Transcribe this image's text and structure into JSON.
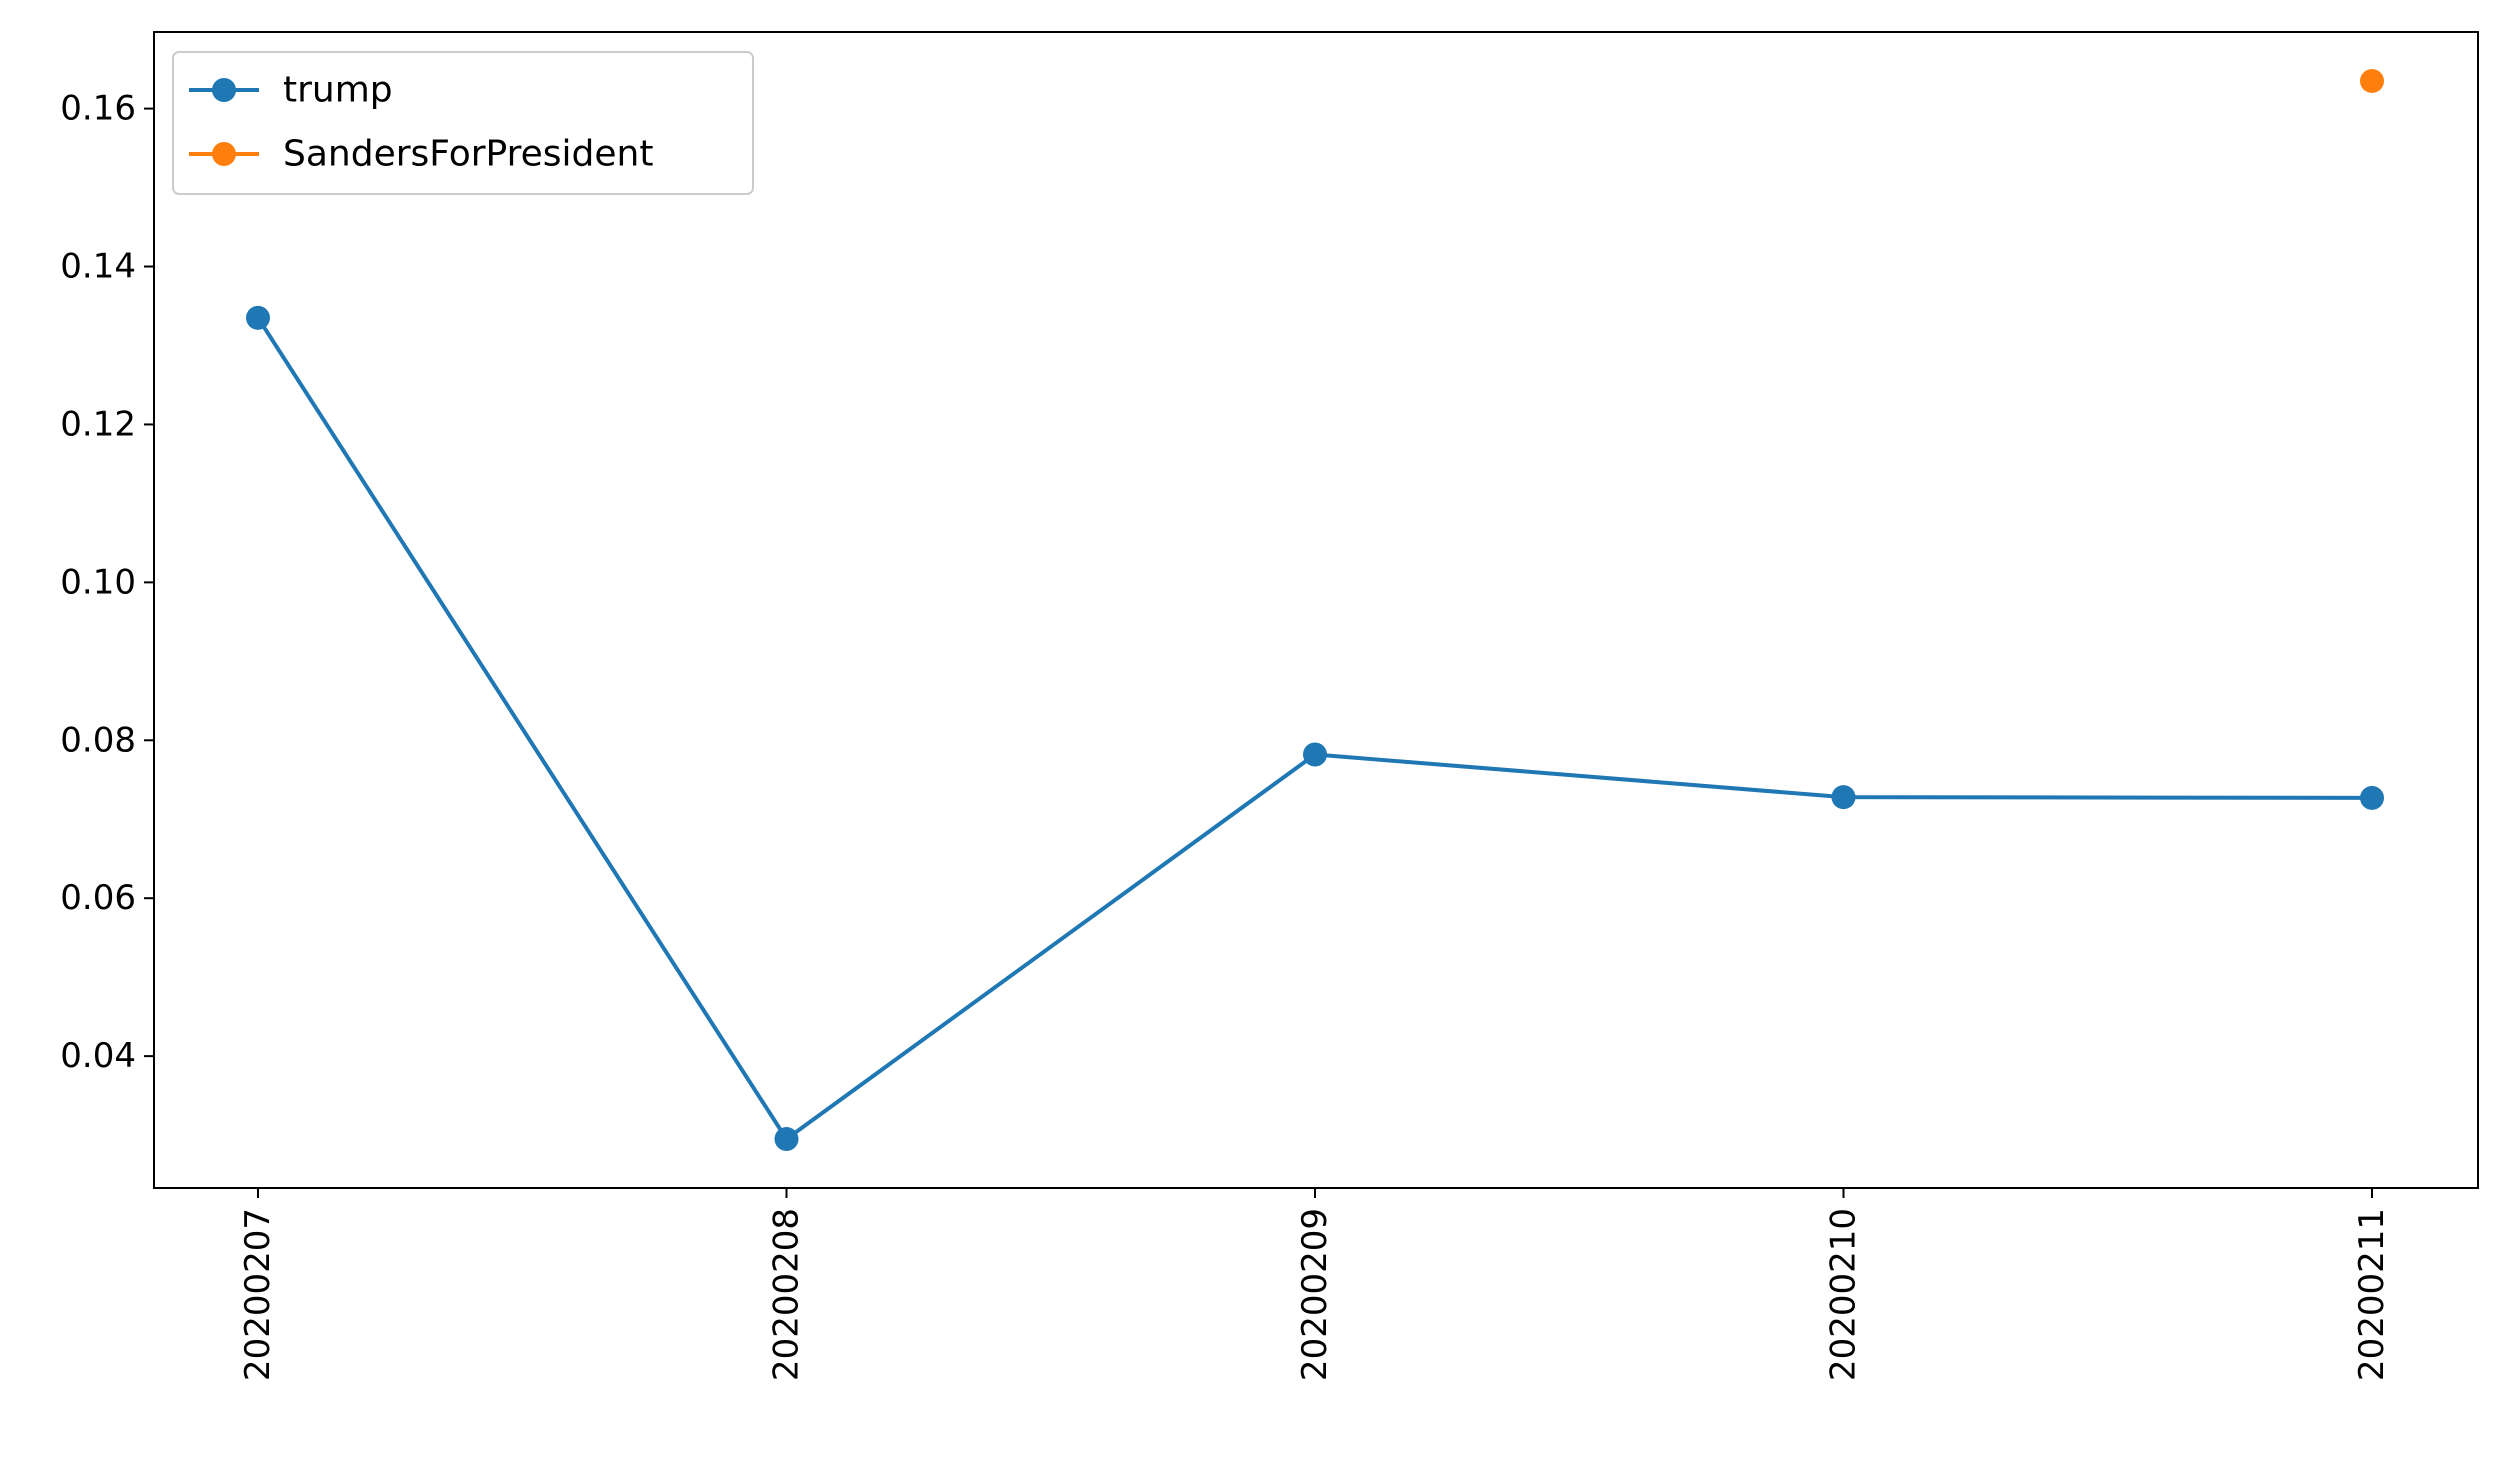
{
  "chart_data": {
    "type": "line",
    "title": "",
    "xlabel": "",
    "ylabel": "",
    "categories": [
      "20200207",
      "20200208",
      "20200209",
      "20200210",
      "20200211"
    ],
    "series": [
      {
        "name": "trump",
        "color": "#1f77b4",
        "values": [
          0.1335,
          0.0295,
          0.0782,
          0.0728,
          0.0727
        ]
      },
      {
        "name": "SandersForPresident",
        "color": "#ff7f0e",
        "values": [
          null,
          null,
          null,
          null,
          0.1635
        ]
      }
    ],
    "ylim": [
      0.0233,
      0.1697
    ],
    "yticks": [
      0.04,
      0.06,
      0.08,
      0.1,
      0.12,
      0.14,
      0.16
    ],
    "ytick_labels": [
      "0.04",
      "0.06",
      "0.08",
      "0.10",
      "0.12",
      "0.14",
      "0.16"
    ],
    "xtick_rotation": "vertical",
    "grid": false,
    "legend": "top-left"
  }
}
